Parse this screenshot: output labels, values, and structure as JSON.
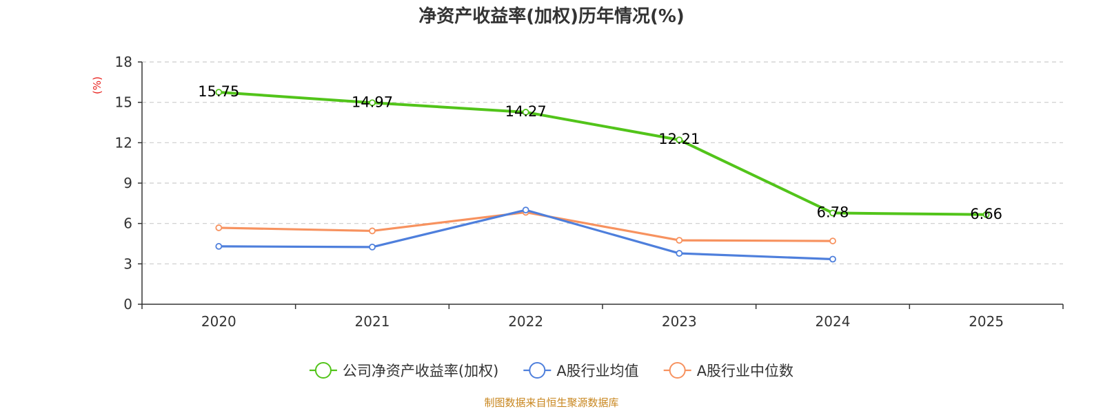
{
  "chart_data": {
    "type": "line",
    "title": "净资产收益率(加权)历年情况(%)",
    "ylabel": "(%)",
    "xlabel": "",
    "categories": [
      "2020",
      "2021",
      "2022",
      "2023",
      "2024",
      "2025"
    ],
    "ylim": [
      0,
      18
    ],
    "yticks": [
      0,
      3,
      6,
      9,
      12,
      15,
      18
    ],
    "grid": true,
    "legend_position": "bottom",
    "series": [
      {
        "name": "公司净资产收益率(加权)",
        "color": "#52c41a",
        "values": [
          15.75,
          14.97,
          14.27,
          12.21,
          6.78,
          6.66
        ],
        "labels": [
          "15.75",
          "14.97",
          "14.27",
          "12.21",
          "6.78",
          "6.66"
        ]
      },
      {
        "name": "A股行业均值",
        "color": "#4e7fdc",
        "values": [
          4.3,
          4.25,
          7.0,
          3.78,
          3.35,
          null
        ]
      },
      {
        "name": "A股行业中位数",
        "color": "#f7925f",
        "values": [
          5.68,
          5.45,
          6.83,
          4.75,
          4.7,
          null
        ]
      }
    ],
    "source": "制图数据来自恒生聚源数据库",
    "colors": {
      "axis": "#333333",
      "grid": "#cccccc",
      "unit": "#e8211d",
      "source": "#c8861e"
    }
  }
}
